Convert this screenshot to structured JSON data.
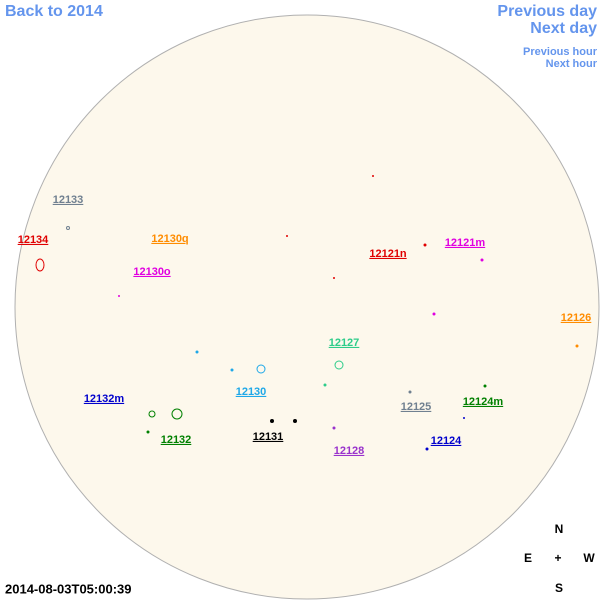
{
  "nav": {
    "back": "Back to 2014",
    "previous_day": "Previous day",
    "next_day": "Next day",
    "previous_hour": "Previous hour",
    "next_hour": "Next hour"
  },
  "timestamp": "2014-08-03T05:00:39",
  "compass": {
    "north": "N",
    "east": "E",
    "center": "+",
    "west": "W",
    "south": "S"
  },
  "regions": [
    {
      "label": "12133",
      "color": "#708090"
    },
    {
      "label": "12134",
      "color": "#e00000"
    },
    {
      "label": "12130q",
      "color": "#ff8c00"
    },
    {
      "label": "12121m",
      "color": "#e000e0"
    },
    {
      "label": "12121n",
      "color": "#e00000"
    },
    {
      "label": "12130o",
      "color": "#e000e0"
    },
    {
      "label": "12126",
      "color": "#ff8c00"
    },
    {
      "label": "12127",
      "color": "#2ecc8a"
    },
    {
      "label": "12130",
      "color": "#1ea8e8"
    },
    {
      "label": "12132m",
      "color": "#0000cc"
    },
    {
      "label": "12125",
      "color": "#708090"
    },
    {
      "label": "12124m",
      "color": "#008000"
    },
    {
      "label": "12132",
      "color": "#008000"
    },
    {
      "label": "12131",
      "color": "#000000"
    },
    {
      "label": "12124",
      "color": "#0000cc"
    },
    {
      "label": "12128",
      "color": "#9932cc"
    }
  ]
}
